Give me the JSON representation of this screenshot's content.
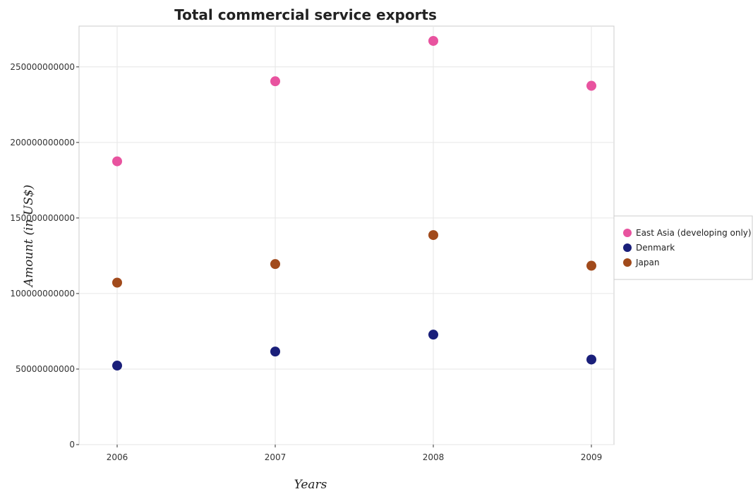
{
  "chart_data": {
    "type": "scatter",
    "title": "Total commercial service exports",
    "xlabel": "Years",
    "ylabel": "Amount (in US$)",
    "categories": [
      "2006",
      "2007",
      "2008",
      "2009"
    ],
    "ylim": [
      0,
      277000000000
    ],
    "yticks": [
      0,
      50000000000,
      100000000000,
      150000000000,
      200000000000,
      250000000000
    ],
    "ytick_labels": [
      "0",
      "50000000000",
      "100000000000",
      "150000000000",
      "200000000000",
      "250000000000"
    ],
    "grid": true,
    "legend_position": "right",
    "series": [
      {
        "name": "East Asia (developing only)",
        "color": "#e8539f",
        "values": [
          187500000000,
          240500000000,
          267200000000,
          237500000000
        ]
      },
      {
        "name": "Denmark",
        "color": "#1a1f7a",
        "values": [
          52300000000,
          61600000000,
          72800000000,
          56300000000
        ]
      },
      {
        "name": "Japan",
        "color": "#a14a1b",
        "values": [
          107200000000,
          119500000000,
          138700000000,
          118400000000
        ]
      }
    ]
  }
}
